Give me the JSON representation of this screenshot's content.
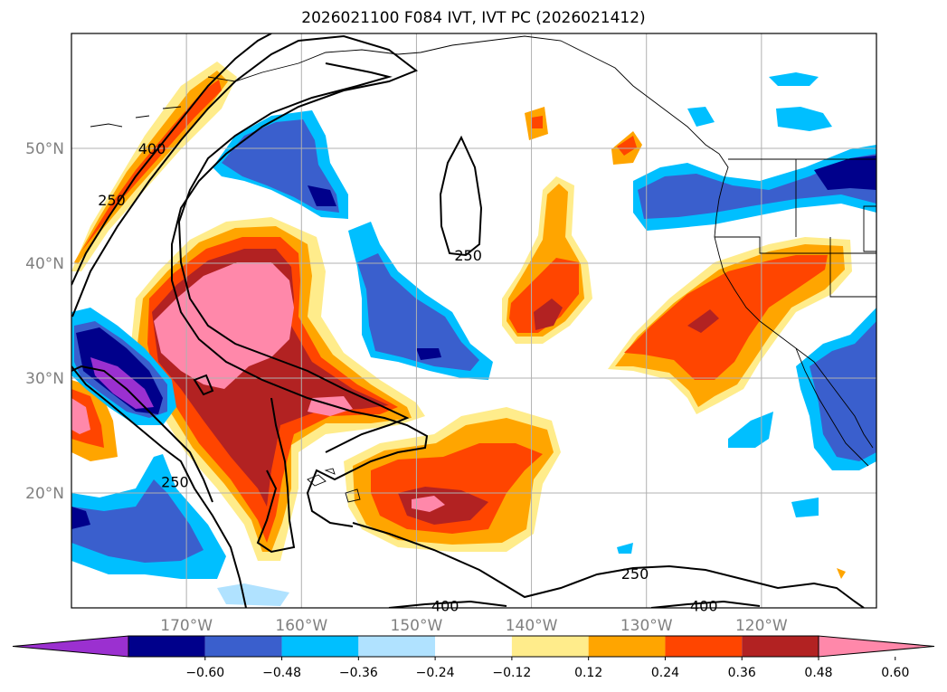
{
  "title": "2026021100 F084 IVT, IVT PC (2026021412)",
  "map": {
    "lon_range": [
      -180,
      -110
    ],
    "lat_range": [
      10,
      60
    ],
    "lat_labels": [
      {
        "lat": 50,
        "label": "50°N"
      },
      {
        "lat": 40,
        "label": "40°N"
      },
      {
        "lat": 30,
        "label": "30°N"
      },
      {
        "lat": 20,
        "label": "20°N"
      }
    ],
    "lon_labels": [
      {
        "lon": -170,
        "label": "170°W"
      },
      {
        "lon": -160,
        "label": "160°W"
      },
      {
        "lon": -150,
        "label": "150°W"
      },
      {
        "lon": -140,
        "label": "140°W"
      },
      {
        "lon": -130,
        "label": "130°W"
      },
      {
        "lon": -120,
        "label": "120°W"
      }
    ],
    "contour_labels": [
      {
        "text": "250",
        "lon": -176.5,
        "lat": 45.5
      },
      {
        "text": "400",
        "lon": -173.0,
        "lat": 50.0
      },
      {
        "text": "250",
        "lon": -145.5,
        "lat": 40.7
      },
      {
        "text": "250",
        "lon": -171.0,
        "lat": 21.0
      },
      {
        "text": "250",
        "lon": -131.0,
        "lat": 13.0
      },
      {
        "text": "400",
        "lon": -147.5,
        "lat": 10.2
      },
      {
        "text": "400",
        "lon": -125.0,
        "lat": 10.2
      }
    ]
  },
  "colorbar": {
    "ticks": [
      "−0.60",
      "−0.48",
      "−0.36",
      "−0.24",
      "−0.12",
      "0.12",
      "0.24",
      "0.36",
      "0.48",
      "0.60"
    ],
    "colors": [
      "#9b30d0",
      "#00008b",
      "#3a5fcd",
      "#00bfff",
      "#b0e2ff",
      "#ffffff",
      "#ffec8b",
      "#ffa500",
      "#ff4500",
      "#b22222",
      "#ff88aa"
    ]
  }
}
